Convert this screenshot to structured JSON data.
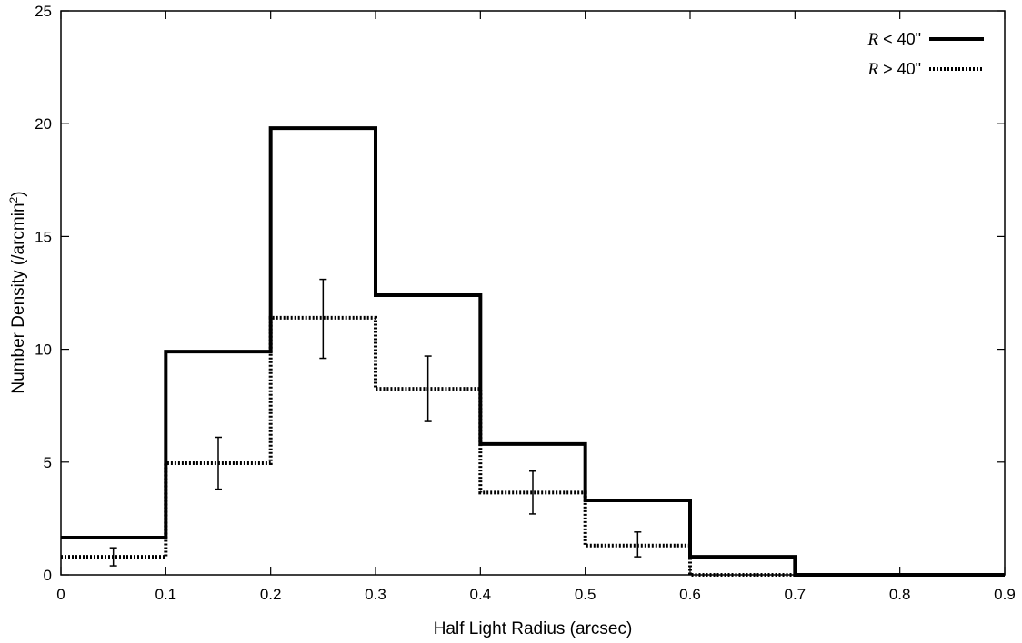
{
  "chart_data": {
    "type": "line",
    "step": true,
    "xlabel": "Half Light Radius (arcsec)",
    "ylabel": "Number Density (/arcmin",
    "ylabel_sup": "2",
    "ylabel_close": ")",
    "xlim": [
      0,
      0.9
    ],
    "ylim": [
      0,
      25
    ],
    "x_ticks": [
      0,
      0.1,
      0.2,
      0.3,
      0.4,
      0.5,
      0.6,
      0.7,
      0.8,
      0.9
    ],
    "x_tick_labels": [
      "0",
      "0.1",
      "0.2",
      "0.3",
      "0.4",
      "0.5",
      "0.6",
      "0.7",
      "0.8",
      "0.9"
    ],
    "y_ticks": [
      0,
      5,
      10,
      15,
      20,
      25
    ],
    "y_tick_labels": [
      "0",
      "5",
      "10",
      "15",
      "20",
      "25"
    ],
    "bin_edges": [
      0,
      0.1,
      0.2,
      0.3,
      0.4,
      0.5,
      0.6,
      0.7,
      0.8,
      0.9
    ],
    "legend_position": "top-right",
    "series": [
      {
        "name_var": "R",
        "name_rest": " < 40\"",
        "style": "solid",
        "values": [
          1.65,
          9.9,
          19.8,
          12.4,
          5.8,
          3.3,
          0.8,
          0.0,
          0.0
        ]
      },
      {
        "name_var": "R",
        "name_rest": " > 40\"",
        "style": "dotted",
        "values": [
          0.8,
          4.95,
          11.4,
          8.25,
          3.65,
          1.3,
          0.0,
          0.0,
          0.0
        ],
        "error_bars": [
          {
            "x": 0.05,
            "low": 0.4,
            "high": 1.2
          },
          {
            "x": 0.15,
            "low": 3.8,
            "high": 6.1
          },
          {
            "x": 0.25,
            "low": 9.6,
            "high": 13.1
          },
          {
            "x": 0.35,
            "low": 6.8,
            "high": 9.7
          },
          {
            "x": 0.45,
            "low": 2.7,
            "high": 4.6
          },
          {
            "x": 0.55,
            "low": 0.8,
            "high": 1.9
          }
        ]
      }
    ]
  }
}
